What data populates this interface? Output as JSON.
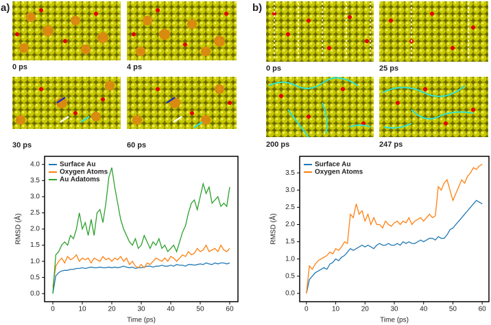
{
  "panel_labels": [
    "a)",
    "b)"
  ],
  "snapshots": {
    "a": [
      "0 ps",
      "4 ps",
      "30 ps",
      "60 ps"
    ],
    "b": [
      "0 ps",
      "25 ps",
      "200 ps",
      "247 ps"
    ]
  },
  "chart_data": [
    {
      "type": "line",
      "x_label": "Time (ps)",
      "y_label": "RMSD (Å)",
      "x": [
        0,
        1,
        2,
        3,
        4,
        5,
        6,
        7,
        8,
        9,
        10,
        11,
        12,
        13,
        14,
        15,
        16,
        17,
        18,
        19,
        20,
        21,
        22,
        23,
        24,
        25,
        26,
        27,
        28,
        29,
        30,
        31,
        32,
        33,
        34,
        35,
        36,
        37,
        38,
        39,
        40,
        41,
        42,
        43,
        44,
        45,
        46,
        47,
        48,
        49,
        50,
        51,
        52,
        53,
        54,
        55,
        56,
        57,
        58,
        59,
        60
      ],
      "series": [
        {
          "name": "Surface Au",
          "color": "#1f77b4",
          "values": [
            0,
            0.55,
            0.65,
            0.7,
            0.72,
            0.72,
            0.75,
            0.75,
            0.78,
            0.78,
            0.8,
            0.78,
            0.8,
            0.82,
            0.8,
            0.8,
            0.82,
            0.8,
            0.8,
            0.82,
            0.8,
            0.82,
            0.8,
            0.82,
            0.85,
            0.82,
            0.8,
            0.82,
            0.78,
            0.8,
            0.8,
            0.82,
            0.85,
            0.85,
            0.82,
            0.85,
            0.85,
            0.88,
            0.85,
            0.85,
            0.88,
            0.85,
            0.9,
            0.88,
            0.88,
            0.85,
            0.9,
            0.9,
            0.88,
            0.9,
            0.92,
            0.9,
            0.95,
            0.92,
            0.9,
            0.95,
            0.92,
            0.95,
            0.95,
            0.92,
            0.95
          ]
        },
        {
          "name": "Oxygen Atoms",
          "color": "#ff7f0e",
          "values": [
            0.2,
            0.85,
            1.0,
            1.1,
            0.95,
            1.15,
            1.05,
            1.1,
            1.2,
            1.0,
            1.1,
            1.05,
            1.1,
            0.95,
            1.1,
            1.05,
            1.0,
            1.15,
            1.05,
            1.1,
            1.0,
            1.1,
            1.05,
            1.15,
            1.0,
            1.1,
            0.9,
            1.0,
            0.85,
            0.8,
            0.9,
            0.8,
            0.95,
            0.9,
            1.0,
            1.1,
            1.05,
            1.0,
            1.1,
            1.0,
            1.15,
            1.1,
            1.0,
            1.1,
            1.2,
            1.15,
            1.3,
            1.2,
            1.25,
            1.4,
            1.3,
            1.35,
            1.5,
            1.3,
            1.35,
            1.4,
            1.3,
            1.5,
            1.35,
            1.3,
            1.4
          ]
        },
        {
          "name": "Au Adatoms",
          "color": "#2ca02c",
          "values": [
            0,
            1.2,
            1.3,
            1.5,
            1.6,
            1.5,
            1.8,
            1.7,
            2.0,
            2.5,
            2.0,
            2.2,
            1.8,
            2.3,
            1.8,
            2.5,
            2.6,
            2.2,
            2.8,
            3.6,
            3.9,
            3.3,
            2.8,
            2.3,
            2.0,
            1.8,
            1.6,
            1.5,
            1.7,
            1.4,
            1.5,
            1.8,
            1.6,
            1.4,
            1.6,
            1.5,
            1.7,
            1.4,
            1.5,
            1.3,
            1.4,
            1.5,
            1.3,
            1.6,
            1.9,
            2.1,
            2.5,
            2.8,
            2.9,
            2.6,
            3.0,
            3.4,
            3.1,
            3.3,
            2.8,
            2.9,
            3.0,
            2.7,
            2.8,
            2.7,
            3.3
          ]
        }
      ],
      "xlim": [
        -2.8,
        62.8
      ],
      "xticks": [
        0,
        10,
        20,
        30,
        40,
        50,
        60
      ],
      "ylim": [
        -0.25,
        4.25
      ],
      "yticks": [
        {
          "value": 0,
          "label": "0.0"
        },
        0.5,
        {
          "value": 1,
          "label": "1.0"
        },
        1.5,
        {
          "value": 2,
          "label": "2.0"
        },
        2.5,
        {
          "value": 3,
          "label": "3.0"
        },
        3.5,
        {
          "value": 4,
          "label": "4.0"
        }
      ]
    },
    {
      "type": "line",
      "x_label": "Time (ps)",
      "y_label": "RMSD (Å)",
      "x": [
        0,
        1,
        2,
        3,
        4,
        5,
        6,
        7,
        8,
        9,
        10,
        11,
        12,
        13,
        14,
        15,
        16,
        17,
        18,
        19,
        20,
        21,
        22,
        23,
        24,
        25,
        26,
        27,
        28,
        29,
        30,
        31,
        32,
        33,
        34,
        35,
        36,
        37,
        38,
        39,
        40,
        41,
        42,
        43,
        44,
        45,
        46,
        47,
        48,
        49,
        50,
        51,
        52,
        53,
        54,
        55,
        56,
        57,
        58,
        59,
        60
      ],
      "series": [
        {
          "name": "Surface Au",
          "color": "#1f77b4",
          "values": [
            0,
            0.4,
            0.5,
            0.6,
            0.65,
            0.7,
            0.75,
            0.7,
            0.85,
            0.9,
            1.0,
            0.95,
            1.05,
            1.1,
            1.2,
            1.3,
            1.25,
            1.3,
            1.35,
            1.4,
            1.35,
            1.4,
            1.35,
            1.3,
            1.4,
            1.45,
            1.4,
            1.4,
            1.45,
            1.4,
            1.4,
            1.45,
            1.4,
            1.5,
            1.45,
            1.5,
            1.45,
            1.45,
            1.5,
            1.55,
            1.5,
            1.55,
            1.6,
            1.6,
            1.55,
            1.65,
            1.6,
            1.6,
            1.7,
            1.85,
            1.9,
            2.0,
            2.1,
            2.2,
            2.3,
            2.4,
            2.5,
            2.6,
            2.7,
            2.65,
            2.6
          ]
        },
        {
          "name": "Oxygen Atoms",
          "color": "#ff7f0e",
          "values": [
            0,
            0.8,
            0.7,
            0.85,
            0.95,
            1.0,
            1.05,
            1.1,
            1.2,
            1.15,
            1.3,
            1.25,
            1.35,
            1.5,
            1.45,
            2.3,
            2.2,
            2.6,
            2.3,
            2.4,
            2.1,
            2.3,
            2.0,
            2.2,
            2.0,
            2.0,
            1.9,
            2.1,
            2.0,
            1.95,
            2.05,
            2.1,
            2.0,
            2.1,
            2.05,
            2.2,
            2.0,
            2.1,
            2.15,
            2.2,
            2.1,
            2.2,
            2.3,
            2.2,
            2.25,
            3.1,
            3.0,
            3.2,
            3.3,
            3.0,
            2.7,
            2.9,
            3.1,
            3.3,
            3.2,
            3.4,
            3.5,
            3.65,
            3.6,
            3.7,
            3.75
          ]
        }
      ],
      "xlim": [
        -2.3,
        62.3
      ],
      "xticks": [
        0,
        10,
        20,
        30,
        40,
        50,
        60
      ],
      "ylim": [
        -0.24,
        3.98
      ],
      "yticks": [
        {
          "value": 0,
          "label": "0.0"
        },
        0.5,
        {
          "value": 1,
          "label": "1.0"
        },
        1.5,
        {
          "value": 2,
          "label": "2.0"
        },
        2.5,
        {
          "value": 3,
          "label": "3.0"
        },
        3.5
      ]
    }
  ]
}
